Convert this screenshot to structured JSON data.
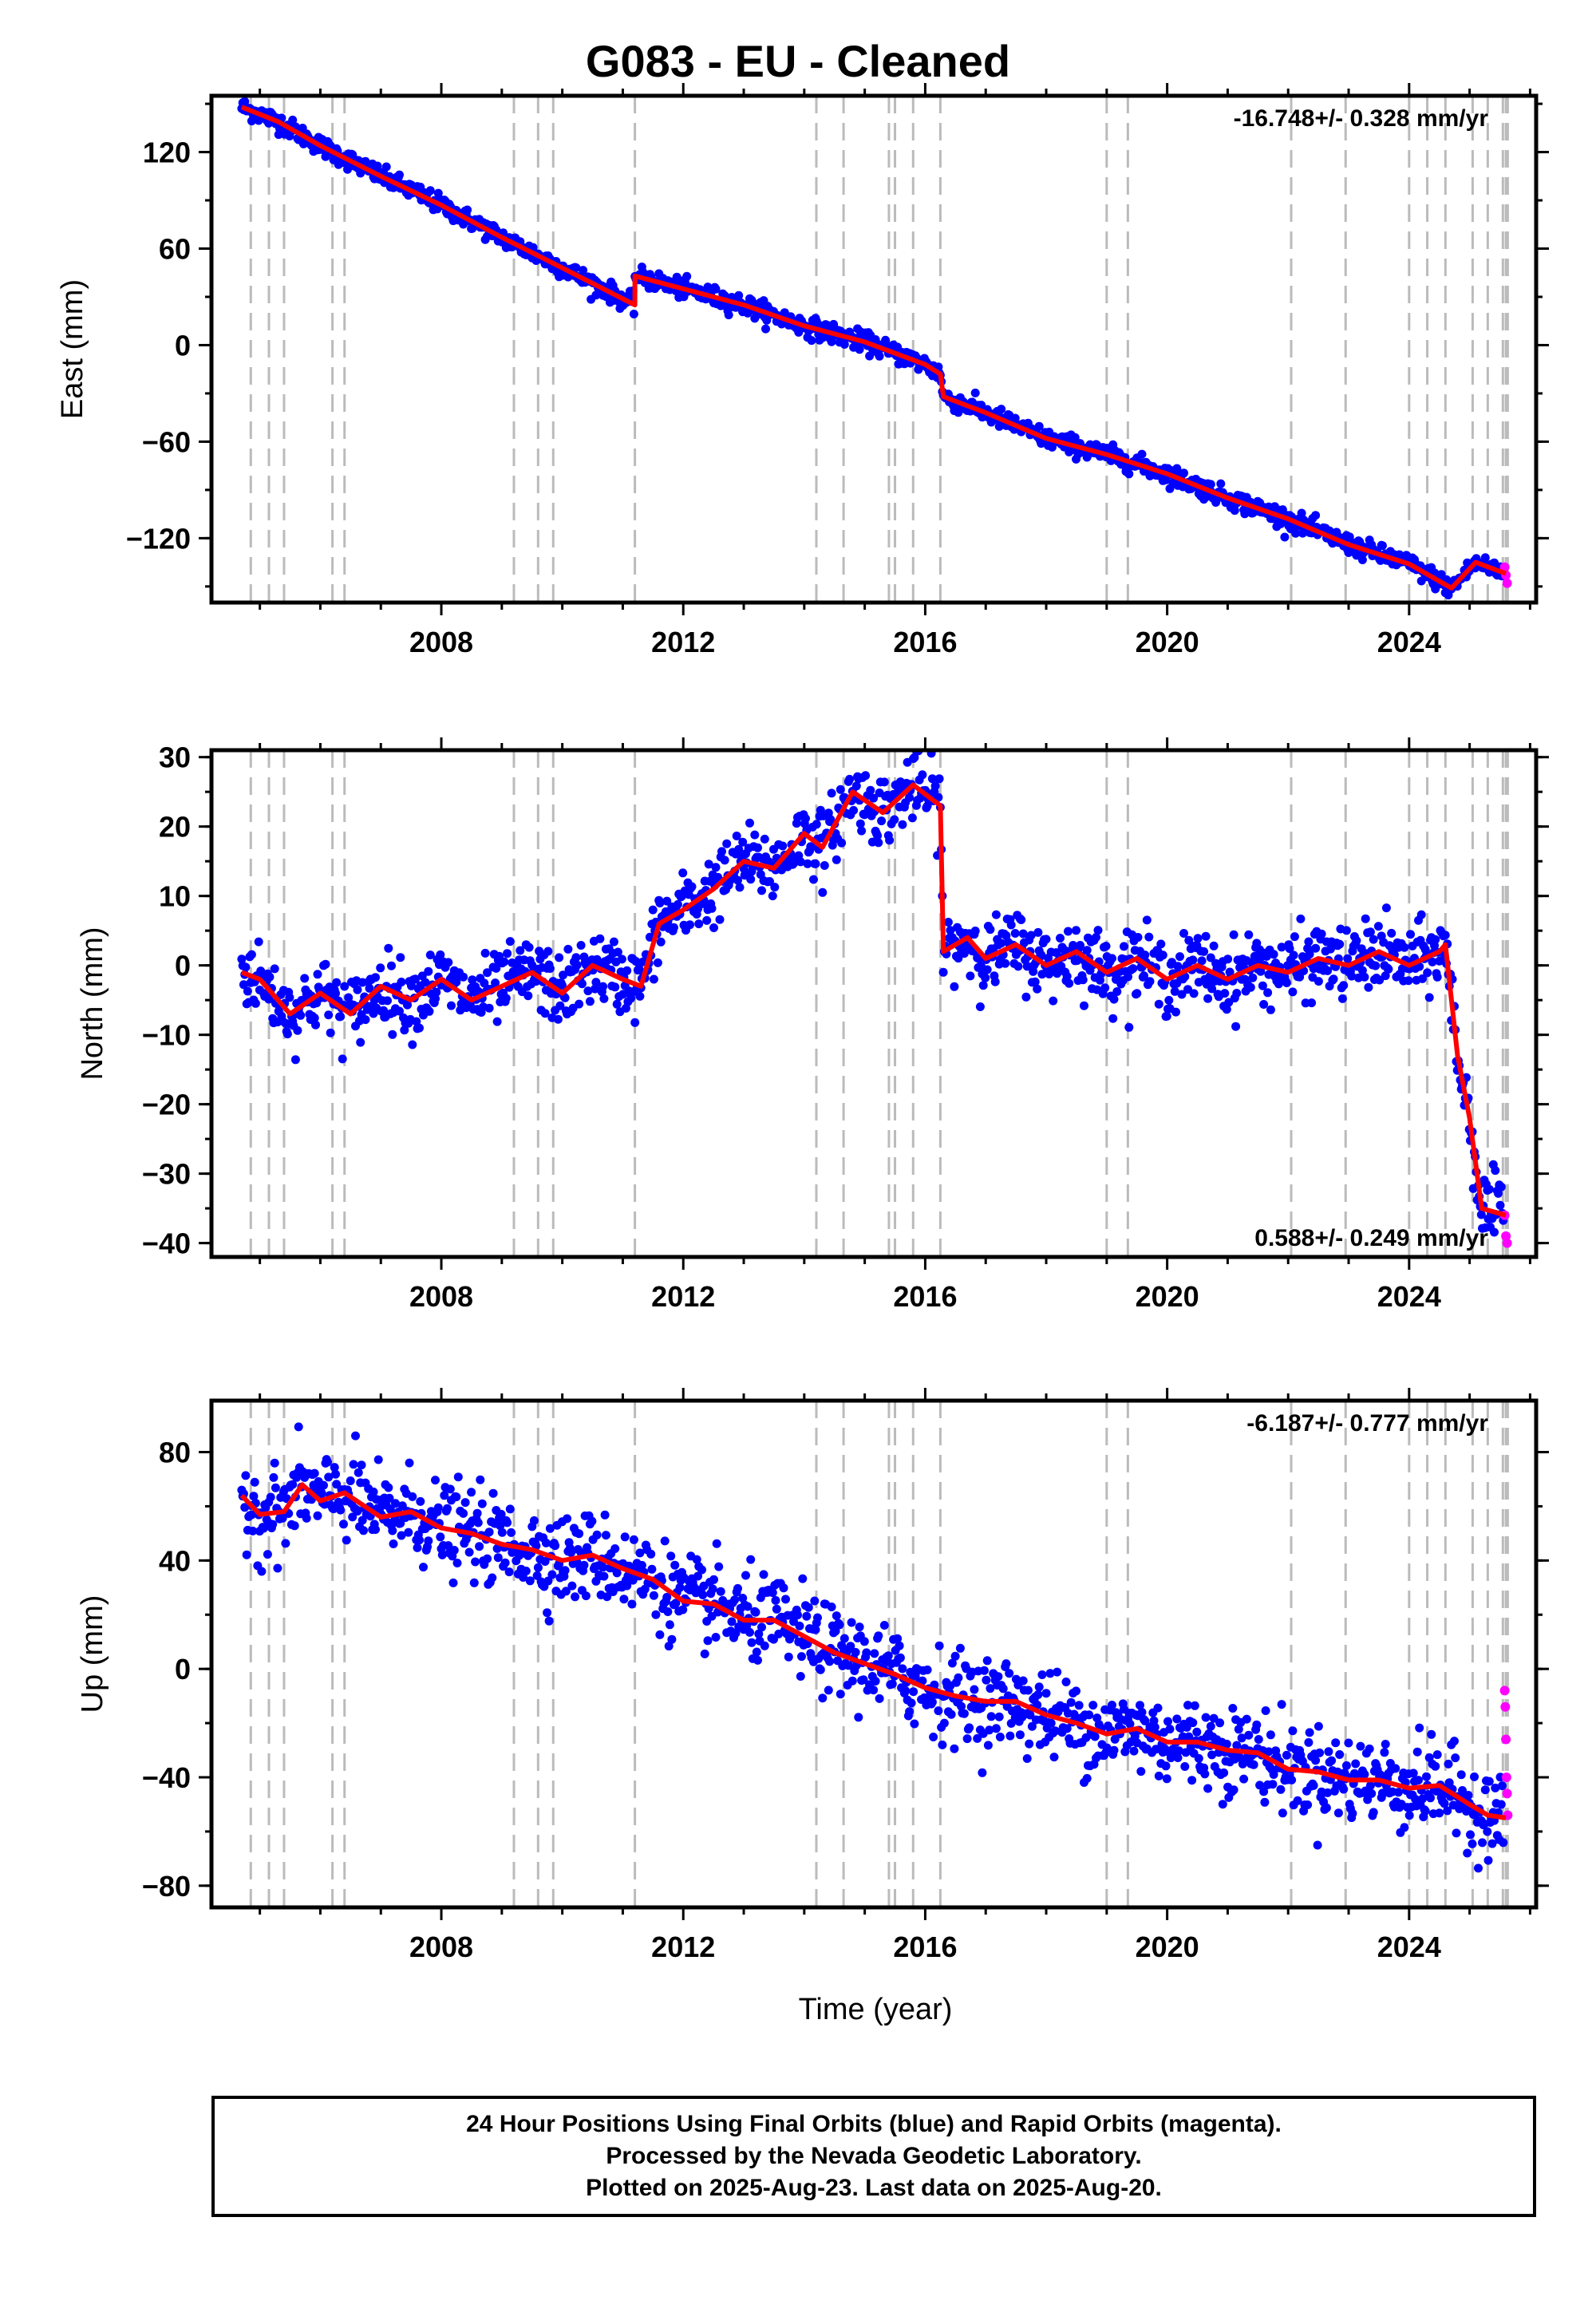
{
  "title": "G083  - EU - Cleaned",
  "xlabel": "Time (year)",
  "footer": {
    "line1": "24 Hour Positions Using Final Orbits (blue) and Rapid Orbits (magenta).",
    "line2": "Processed by the Nevada Geodetic Laboratory.",
    "line3": "Plotted on 2025-Aug-23. Last data on 2025-Aug-20."
  },
  "colors": {
    "final": "#0000ff",
    "rapid": "#ff00ff",
    "model": "#ff0000",
    "event": "#bbbbbb"
  },
  "events": [
    2004.85,
    2005.15,
    2005.4,
    2006.2,
    2006.4,
    2009.2,
    2009.6,
    2009.85,
    2011.2,
    2014.2,
    2014.65,
    2015.4,
    2015.5,
    2015.8,
    2016.25,
    2019.0,
    2019.35,
    2022.05,
    2022.95,
    2024.0,
    2024.3,
    2024.6,
    2025.05,
    2025.3,
    2025.55,
    2025.6,
    2025.63
  ],
  "chart_data": [
    {
      "type": "scatter",
      "ylabel": "East (mm)",
      "xlim": [
        2004.2,
        2026.1
      ],
      "ylim": [
        -160,
        155
      ],
      "xticks": [
        2008,
        2012,
        2016,
        2020,
        2024
      ],
      "yticks": [
        120,
        60,
        0,
        -60,
        -120
      ],
      "ytick_labels": [
        "120",
        "60",
        "0",
        "−60",
        "−120"
      ],
      "rate_text": "-16.748+/- 0.328 mm/yr",
      "rate_position": "top-right",
      "model": [
        [
          2004.7,
          148
        ],
        [
          2005.3,
          139
        ],
        [
          2006.0,
          124
        ],
        [
          2007.0,
          105
        ],
        [
          2008.0,
          87
        ],
        [
          2009.0,
          67
        ],
        [
          2010.0,
          48
        ],
        [
          2011.2,
          25
        ],
        [
          2011.2,
          43
        ],
        [
          2012.0,
          35
        ],
        [
          2013.0,
          25
        ],
        [
          2014.0,
          12
        ],
        [
          2015.0,
          2
        ],
        [
          2016.0,
          -12
        ],
        [
          2016.25,
          -18
        ],
        [
          2016.3,
          -32
        ],
        [
          2017.0,
          -42
        ],
        [
          2018.0,
          -58
        ],
        [
          2019.0,
          -68
        ],
        [
          2020.0,
          -80
        ],
        [
          2021.0,
          -95
        ],
        [
          2022.0,
          -108
        ],
        [
          2023.0,
          -124
        ],
        [
          2024.0,
          -136
        ],
        [
          2024.7,
          -151
        ],
        [
          2025.1,
          -135
        ],
        [
          2025.6,
          -142
        ]
      ],
      "noise": 3,
      "rapid": [
        [
          2025.58,
          -138
        ],
        [
          2025.6,
          -143
        ],
        [
          2025.62,
          -148
        ]
      ]
    },
    {
      "type": "scatter",
      "ylabel": "North (mm)",
      "xlim": [
        2004.2,
        2026.1
      ],
      "ylim": [
        -42,
        31
      ],
      "xticks": [
        2008,
        2012,
        2016,
        2020,
        2024
      ],
      "yticks": [
        30,
        20,
        10,
        0,
        -10,
        -20,
        -30,
        -40
      ],
      "ytick_labels": [
        "30",
        "20",
        "10",
        "0",
        "−10",
        "−20",
        "−30",
        "−40"
      ],
      "rate_text": "0.588+/- 0.249 mm/yr",
      "rate_position": "bottom-right",
      "model": [
        [
          2004.7,
          -1
        ],
        [
          2005.0,
          -2
        ],
        [
          2005.5,
          -7
        ],
        [
          2006.0,
          -4
        ],
        [
          2006.5,
          -7
        ],
        [
          2007.0,
          -3
        ],
        [
          2007.5,
          -5
        ],
        [
          2008.0,
          -2
        ],
        [
          2008.5,
          -5
        ],
        [
          2009.0,
          -3
        ],
        [
          2009.5,
          -1
        ],
        [
          2010.0,
          -4
        ],
        [
          2010.5,
          0
        ],
        [
          2011.0,
          -2
        ],
        [
          2011.3,
          -3
        ],
        [
          2011.6,
          6
        ],
        [
          2012.0,
          8
        ],
        [
          2012.5,
          11
        ],
        [
          2013.0,
          15
        ],
        [
          2013.5,
          14
        ],
        [
          2014.0,
          19
        ],
        [
          2014.3,
          17
        ],
        [
          2014.8,
          25
        ],
        [
          2015.3,
          22
        ],
        [
          2015.8,
          26
        ],
        [
          2016.25,
          23
        ],
        [
          2016.3,
          2
        ],
        [
          2016.7,
          4
        ],
        [
          2017.0,
          1
        ],
        [
          2017.5,
          3
        ],
        [
          2018.0,
          0
        ],
        [
          2018.5,
          2
        ],
        [
          2019.0,
          -1
        ],
        [
          2019.5,
          1
        ],
        [
          2020.0,
          -2
        ],
        [
          2020.5,
          0
        ],
        [
          2021.0,
          -2
        ],
        [
          2021.5,
          0
        ],
        [
          2022.0,
          -1
        ],
        [
          2022.5,
          1
        ],
        [
          2023.0,
          0
        ],
        [
          2023.5,
          2
        ],
        [
          2024.0,
          0
        ],
        [
          2024.5,
          2
        ],
        [
          2024.6,
          3
        ],
        [
          2024.8,
          -13
        ],
        [
          2025.0,
          -22
        ],
        [
          2025.2,
          -35
        ],
        [
          2025.6,
          -36
        ]
      ],
      "noise": 2.5,
      "rapid": [
        [
          2025.58,
          -36
        ],
        [
          2025.6,
          -39
        ],
        [
          2025.62,
          -40
        ]
      ]
    },
    {
      "type": "scatter",
      "ylabel": "Up (mm)",
      "xlim": [
        2004.2,
        2026.1
      ],
      "ylim": [
        -88,
        99
      ],
      "xticks": [
        2008,
        2012,
        2016,
        2020,
        2024
      ],
      "yticks": [
        80,
        40,
        0,
        -40,
        -80
      ],
      "ytick_labels": [
        "80",
        "40",
        "0",
        "−40",
        "−80"
      ],
      "rate_text": "-6.187+/- 0.777 mm/yr",
      "rate_position": "top-right",
      "model": [
        [
          2004.7,
          64
        ],
        [
          2005.0,
          57
        ],
        [
          2005.4,
          58
        ],
        [
          2005.7,
          68
        ],
        [
          2006.0,
          62
        ],
        [
          2006.4,
          65
        ],
        [
          2007.0,
          56
        ],
        [
          2007.5,
          58
        ],
        [
          2008.0,
          52
        ],
        [
          2008.5,
          50
        ],
        [
          2009.0,
          46
        ],
        [
          2009.5,
          44
        ],
        [
          2010.0,
          40
        ],
        [
          2010.5,
          42
        ],
        [
          2011.0,
          37
        ],
        [
          2011.5,
          33
        ],
        [
          2012.0,
          25
        ],
        [
          2012.5,
          24
        ],
        [
          2013.0,
          18
        ],
        [
          2013.5,
          18
        ],
        [
          2014.0,
          12
        ],
        [
          2014.5,
          6
        ],
        [
          2015.0,
          2
        ],
        [
          2015.5,
          -2
        ],
        [
          2016.0,
          -7
        ],
        [
          2016.5,
          -10
        ],
        [
          2017.0,
          -12
        ],
        [
          2017.5,
          -12
        ],
        [
          2018.0,
          -17
        ],
        [
          2018.5,
          -20
        ],
        [
          2019.0,
          -24
        ],
        [
          2019.5,
          -22
        ],
        [
          2020.0,
          -27
        ],
        [
          2020.5,
          -27
        ],
        [
          2021.0,
          -30
        ],
        [
          2021.5,
          -31
        ],
        [
          2022.0,
          -37
        ],
        [
          2022.5,
          -38
        ],
        [
          2023.0,
          -41
        ],
        [
          2023.5,
          -41
        ],
        [
          2024.0,
          -44
        ],
        [
          2024.5,
          -43
        ],
        [
          2025.0,
          -50
        ],
        [
          2025.3,
          -54
        ],
        [
          2025.6,
          -55
        ]
      ],
      "noise": 8,
      "rapid": [
        [
          2025.58,
          -8
        ],
        [
          2025.59,
          -14
        ],
        [
          2025.6,
          -26
        ],
        [
          2025.61,
          -40
        ],
        [
          2025.62,
          -46
        ],
        [
          2025.63,
          -54
        ]
      ]
    }
  ]
}
